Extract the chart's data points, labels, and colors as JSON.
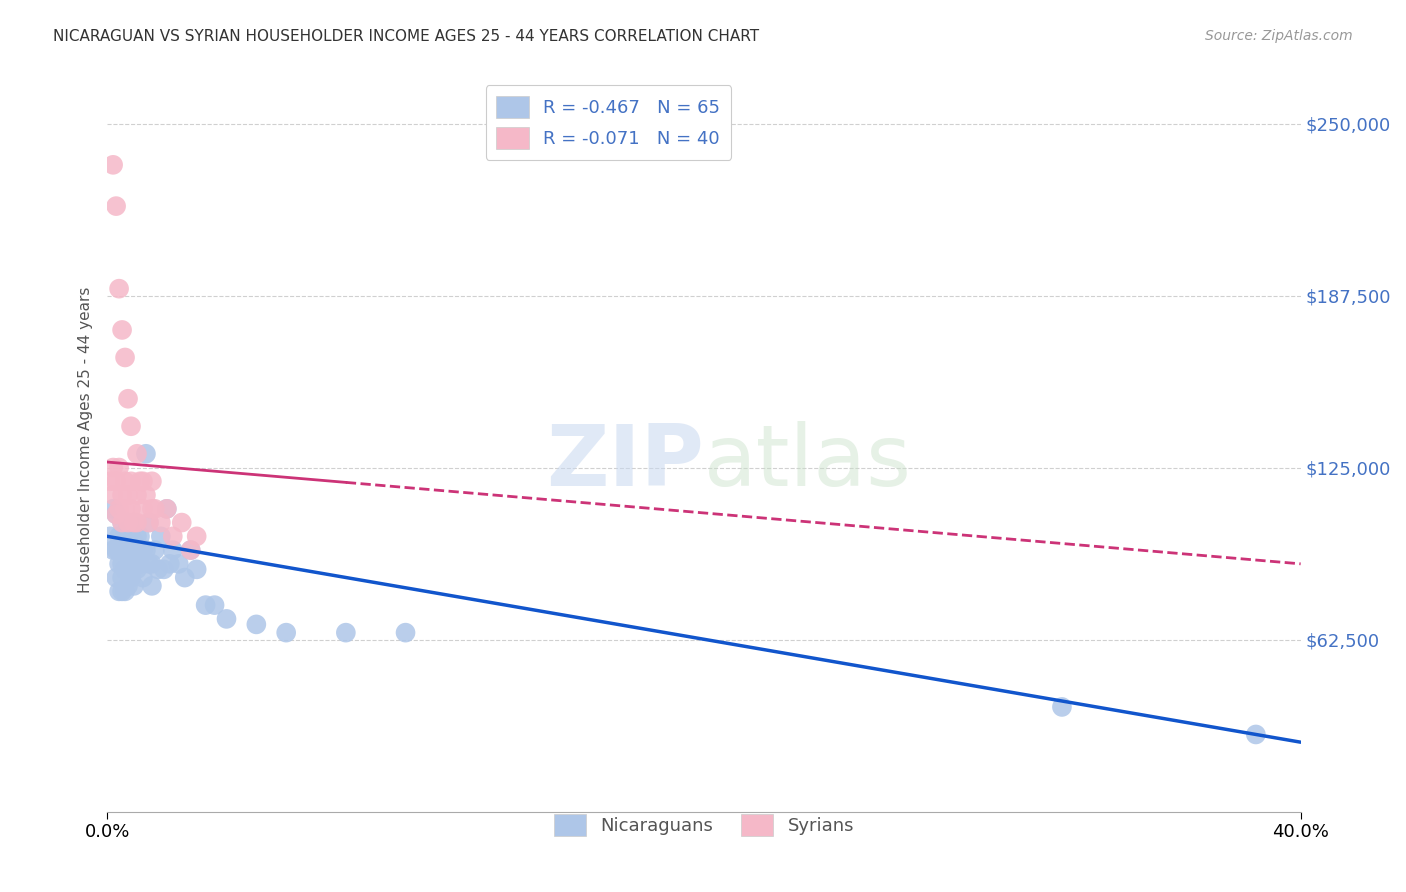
{
  "title": "NICARAGUAN VS SYRIAN HOUSEHOLDER INCOME AGES 25 - 44 YEARS CORRELATION CHART",
  "source": "Source: ZipAtlas.com",
  "ylabel": "Householder Income Ages 25 - 44 years",
  "yticks": [
    62500,
    125000,
    187500,
    250000
  ],
  "ytick_labels": [
    "$62,500",
    "$125,000",
    "$187,500",
    "$250,000"
  ],
  "xlim": [
    0.0,
    0.4
  ],
  "ylim": [
    0,
    270000
  ],
  "legend_entries": [
    {
      "label": "R = -0.467   N = 65",
      "color": "#aec6e8"
    },
    {
      "label": "R = -0.071   N = 40",
      "color": "#f5b8c8"
    }
  ],
  "legend_bottom": [
    "Nicaraguans",
    "Syrians"
  ],
  "watermark_zip": "ZIP",
  "watermark_atlas": "atlas",
  "bg_color": "#ffffff",
  "grid_color": "#d0d0d0",
  "blue_line_color": "#1155cc",
  "pink_line_color": "#cc3377",
  "blue_scatter_color": "#aec6e8",
  "pink_scatter_color": "#f5b8c8",
  "nicaraguan_x": [
    0.001,
    0.002,
    0.002,
    0.003,
    0.003,
    0.003,
    0.004,
    0.004,
    0.004,
    0.004,
    0.005,
    0.005,
    0.005,
    0.005,
    0.005,
    0.006,
    0.006,
    0.006,
    0.006,
    0.007,
    0.007,
    0.007,
    0.007,
    0.007,
    0.008,
    0.008,
    0.008,
    0.008,
    0.009,
    0.009,
    0.009,
    0.009,
    0.01,
    0.01,
    0.01,
    0.011,
    0.011,
    0.012,
    0.012,
    0.013,
    0.013,
    0.014,
    0.014,
    0.015,
    0.015,
    0.016,
    0.017,
    0.018,
    0.019,
    0.02,
    0.021,
    0.022,
    0.024,
    0.026,
    0.028,
    0.03,
    0.033,
    0.036,
    0.04,
    0.05,
    0.06,
    0.08,
    0.1,
    0.32,
    0.385
  ],
  "nicaraguan_y": [
    100000,
    110000,
    95000,
    108000,
    95000,
    85000,
    100000,
    95000,
    90000,
    80000,
    105000,
    95000,
    90000,
    85000,
    80000,
    100000,
    95000,
    88000,
    80000,
    105000,
    100000,
    95000,
    88000,
    82000,
    100000,
    95000,
    90000,
    85000,
    105000,
    98000,
    90000,
    82000,
    100000,
    95000,
    88000,
    100000,
    90000,
    95000,
    85000,
    130000,
    95000,
    105000,
    90000,
    90000,
    82000,
    95000,
    88000,
    100000,
    88000,
    110000,
    90000,
    95000,
    90000,
    85000,
    95000,
    88000,
    75000,
    75000,
    70000,
    68000,
    65000,
    65000,
    65000,
    38000,
    28000
  ],
  "syrian_x": [
    0.001,
    0.002,
    0.002,
    0.003,
    0.003,
    0.004,
    0.004,
    0.005,
    0.005,
    0.006,
    0.006,
    0.007,
    0.007,
    0.008,
    0.008,
    0.009,
    0.01,
    0.01,
    0.011,
    0.012,
    0.013,
    0.014,
    0.015,
    0.016,
    0.018,
    0.02,
    0.022,
    0.025,
    0.028,
    0.03,
    0.002,
    0.003,
    0.004,
    0.005,
    0.006,
    0.007,
    0.008,
    0.01,
    0.012,
    0.015
  ],
  "syrian_y": [
    120000,
    125000,
    115000,
    120000,
    108000,
    125000,
    110000,
    115000,
    105000,
    120000,
    110000,
    115000,
    105000,
    120000,
    110000,
    105000,
    115000,
    105000,
    120000,
    110000,
    115000,
    105000,
    120000,
    110000,
    105000,
    110000,
    100000,
    105000,
    95000,
    100000,
    235000,
    220000,
    190000,
    175000,
    165000,
    150000,
    140000,
    130000,
    120000,
    110000
  ]
}
